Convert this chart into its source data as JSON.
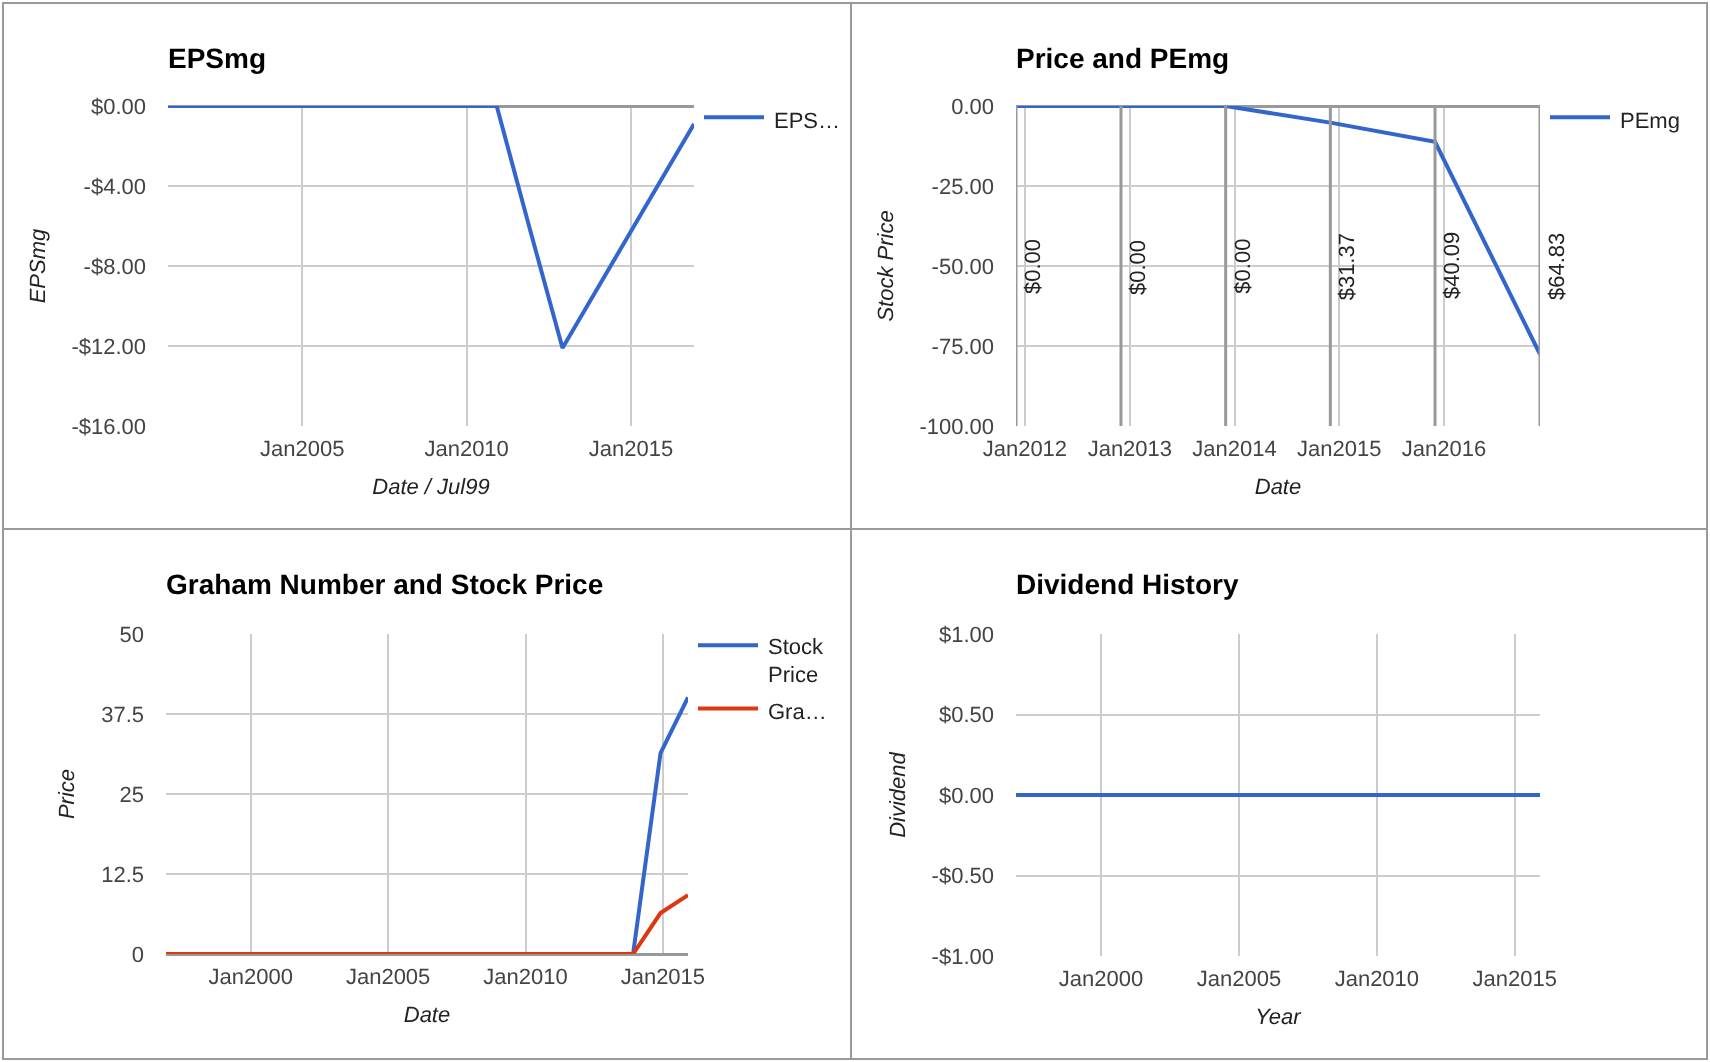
{
  "chart_data": [
    {
      "type": "line",
      "title": "EPSmg",
      "xlabel": "Date / Jul99",
      "ylabel": "EPSmg",
      "x": [
        "2000-12",
        "2001-12",
        "2002-12",
        "2003-12",
        "2004-12",
        "2005-12",
        "2006-12",
        "2007-12",
        "2008-12",
        "2009-12",
        "2010-12",
        "2011-12",
        "2012-12",
        "2013-12",
        "2014-12",
        "2015-12",
        "2016-12"
      ],
      "series": [
        {
          "name": "EPS…",
          "color": "#3366cc",
          "values": [
            0,
            0,
            0,
            0,
            0,
            0,
            0,
            0,
            0,
            0,
            0,
            -6.1,
            -12.1,
            -9.3,
            -6.5,
            -3.7,
            -0.9
          ]
        }
      ],
      "xlim": [
        "2000-12",
        "2016-12"
      ],
      "xticks": [
        {
          "value": "2005-01",
          "label": "Jan2005"
        },
        {
          "value": "2010-01",
          "label": "Jan2010"
        },
        {
          "value": "2015-01",
          "label": "Jan2015"
        }
      ],
      "ylim": [
        -16,
        0
      ],
      "yticks": [
        {
          "value": 0,
          "label": "$0.00"
        },
        {
          "value": -4,
          "label": "-$4.00"
        },
        {
          "value": -8,
          "label": "-$8.00"
        },
        {
          "value": -12,
          "label": "-$12.00"
        },
        {
          "value": -16,
          "label": "-$16.00"
        }
      ],
      "grid": true,
      "legend": "right"
    },
    {
      "type": "line",
      "title": "Price and PEmg",
      "xlabel": "Date",
      "ylabel": "Stock Price",
      "x": [
        "2011-12",
        "2012-12",
        "2013-12",
        "2014-12",
        "2015-12",
        "2016-12"
      ],
      "series": [
        {
          "name": "PEmg",
          "color": "#3366cc",
          "values": [
            0,
            0,
            0,
            -5.2,
            -11.2,
            -77.6
          ]
        }
      ],
      "xlim": [
        "2011-12",
        "2016-12"
      ],
      "xticks": [
        {
          "value": "2012-01",
          "label": "Jan2012"
        },
        {
          "value": "2013-01",
          "label": "Jan2013"
        },
        {
          "value": "2014-01",
          "label": "Jan2014"
        },
        {
          "value": "2015-01",
          "label": "Jan2015"
        },
        {
          "value": "2016-01",
          "label": "Jan2016"
        }
      ],
      "ylim": [
        -100,
        0
      ],
      "yticks": [
        {
          "value": 0,
          "label": "0.00"
        },
        {
          "value": -25,
          "label": "-25.00"
        },
        {
          "value": -50,
          "label": "-50.00"
        },
        {
          "value": -75,
          "label": "-75.00"
        },
        {
          "value": -100,
          "label": "-100.00"
        }
      ],
      "ref_lines": [
        {
          "axis": "x",
          "value": "2011-12",
          "label": "$0.00",
          "color": "#999999"
        },
        {
          "axis": "x",
          "value": "2012-12",
          "label": "$0.00",
          "color": "#999999"
        },
        {
          "axis": "x",
          "value": "2013-12",
          "label": "$0.00",
          "color": "#999999"
        },
        {
          "axis": "x",
          "value": "2014-12",
          "label": "$31.37",
          "color": "#999999"
        },
        {
          "axis": "x",
          "value": "2015-12",
          "label": "$40.09",
          "color": "#999999"
        },
        {
          "axis": "x",
          "value": "2016-12",
          "label": "$64.83",
          "color": "#999999"
        }
      ],
      "grid": true,
      "legend": "right"
    },
    {
      "type": "line",
      "title": "Graham Number and Stock Price",
      "xlabel": "Date",
      "ylabel": "Price",
      "x": [
        "1996-12",
        "1997-12",
        "1998-12",
        "1999-12",
        "2000-12",
        "2001-12",
        "2002-12",
        "2003-12",
        "2004-12",
        "2005-12",
        "2006-12",
        "2007-12",
        "2008-12",
        "2009-12",
        "2010-12",
        "2011-12",
        "2012-12",
        "2013-12",
        "2014-12",
        "2015-12"
      ],
      "series": [
        {
          "name": "Stock Price",
          "color": "#3366cc",
          "values": [
            null,
            null,
            null,
            null,
            null,
            null,
            null,
            null,
            null,
            null,
            null,
            null,
            null,
            null,
            null,
            null,
            null,
            0,
            31.4,
            40.1
          ]
        },
        {
          "name": "Gra…",
          "color": "#dc3912",
          "values": [
            0,
            0,
            0,
            0,
            0,
            0,
            0,
            0,
            0,
            0,
            0,
            0,
            0,
            0,
            0,
            0,
            0,
            0,
            6.4,
            9.2
          ]
        }
      ],
      "xlim": [
        "1996-12",
        "2015-12"
      ],
      "xticks": [
        {
          "value": "2000-01",
          "label": "Jan2000"
        },
        {
          "value": "2005-01",
          "label": "Jan2005"
        },
        {
          "value": "2010-01",
          "label": "Jan2010"
        },
        {
          "value": "2015-01",
          "label": "Jan2015"
        }
      ],
      "ylim": [
        0,
        50
      ],
      "yticks": [
        0,
        12.5,
        25,
        37.5,
        50
      ],
      "grid": true,
      "legend": "right"
    },
    {
      "type": "line",
      "title": "Dividend History",
      "xlabel": "Year",
      "ylabel": "Dividend",
      "x": [
        "1996-12",
        "1997-12",
        "1998-12",
        "1999-12",
        "2000-12",
        "2001-12",
        "2002-12",
        "2003-12",
        "2004-12",
        "2005-12",
        "2006-12",
        "2007-12",
        "2008-12",
        "2009-12",
        "2010-12",
        "2011-12",
        "2012-12",
        "2013-12",
        "2014-12",
        "2015-12"
      ],
      "series": [
        {
          "color": "#3366cc",
          "values": [
            0,
            0,
            0,
            0,
            0,
            0,
            0,
            0,
            0,
            0,
            0,
            0,
            0,
            0,
            0,
            0,
            0,
            0,
            0,
            0
          ]
        }
      ],
      "xlim": [
        "1996-12",
        "2015-12"
      ],
      "xticks": [
        {
          "value": "2000-01",
          "label": "Jan2000"
        },
        {
          "value": "2005-01",
          "label": "Jan2005"
        },
        {
          "value": "2010-01",
          "label": "Jan2010"
        },
        {
          "value": "2015-01",
          "label": "Jan2015"
        }
      ],
      "ylim": [
        -1,
        1
      ],
      "yticks": [
        {
          "value": 1,
          "label": "$1.00"
        },
        {
          "value": 0.5,
          "label": "$0.50"
        },
        {
          "value": 0,
          "label": "$0.00"
        },
        {
          "value": -0.5,
          "label": "-$0.50"
        },
        {
          "value": -1,
          "label": "-$1.00"
        }
      ],
      "grid": true,
      "legend": false
    }
  ]
}
